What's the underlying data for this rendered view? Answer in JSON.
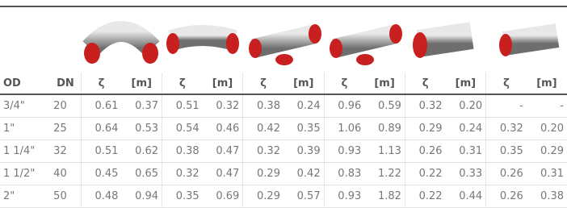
{
  "table": {
    "header": [
      "OD",
      "DN",
      "ζ",
      "[m]",
      "ζ",
      "[m]",
      "ζ",
      "[m]",
      "ζ",
      "[m]",
      "ζ",
      "[m]",
      "ζ",
      "[m]"
    ],
    "rows": [
      [
        "3/4\"",
        "20",
        "0.61",
        "0.37",
        "0.51",
        "0.32",
        "0.38",
        "0.24",
        "0.96",
        "0.59",
        "0.32",
        "0.20",
        "-",
        "-"
      ],
      [
        "1\"",
        "25",
        "0.64",
        "0.53",
        "0.54",
        "0.46",
        "0.42",
        "0.35",
        "1.06",
        "0.89",
        "0.29",
        "0.24",
        "0.32",
        "0.20"
      ],
      [
        "1 1/4\"",
        "32",
        "0.51",
        "0.62",
        "0.38",
        "0.47",
        "0.32",
        "0.39",
        "0.93",
        "1.13",
        "0.26",
        "0.31",
        "0.35",
        "0.29"
      ],
      [
        "1 1/2\"",
        "40",
        "0.45",
        "0.65",
        "0.32",
        "0.47",
        "0.29",
        "0.42",
        "0.83",
        "1.22",
        "0.22",
        "0.33",
        "0.26",
        "0.31"
      ],
      [
        "2\"",
        "50",
        "0.48",
        "0.94",
        "0.35",
        "0.69",
        "0.29",
        "0.57",
        "0.93",
        "1.82",
        "0.22",
        "0.44",
        "0.26",
        "0.38"
      ]
    ]
  }
}
